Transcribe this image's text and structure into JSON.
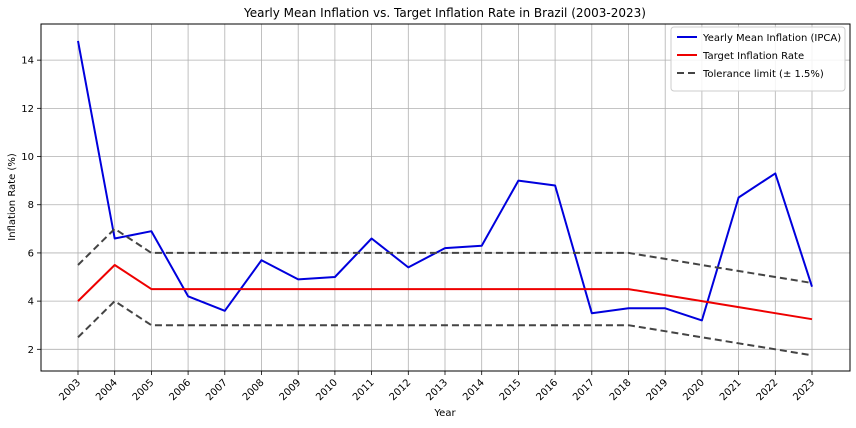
{
  "chart_data": {
    "type": "line",
    "title": "Yearly Mean Inflation vs. Target Inflation Rate in Brazil (2003-2023)",
    "xlabel": "Year",
    "ylabel": "Inflation Rate (%)",
    "x": [
      "2003",
      "2004",
      "2005",
      "2006",
      "2007",
      "2008",
      "2009",
      "2010",
      "2011",
      "2012",
      "2013",
      "2014",
      "2015",
      "2016",
      "2017",
      "2018",
      "2019",
      "2020",
      "2021",
      "2022",
      "2023"
    ],
    "ylim": [
      1.1,
      15.5
    ],
    "yticks": [
      2,
      4,
      6,
      8,
      10,
      12,
      14
    ],
    "grid": true,
    "legend_position": "top-right",
    "series": [
      {
        "name": "Yearly Mean Inflation (IPCA)",
        "color": "#0000dd",
        "style": "solid",
        "show_in_legend": true,
        "values": [
          14.8,
          6.6,
          6.9,
          4.2,
          3.6,
          5.7,
          4.9,
          5.0,
          6.6,
          5.4,
          6.2,
          6.3,
          9.0,
          8.8,
          3.5,
          3.7,
          3.7,
          3.2,
          8.3,
          9.3,
          4.6
        ]
      },
      {
        "name": "Target Inflation Rate",
        "color": "#ee0000",
        "style": "solid",
        "show_in_legend": true,
        "values": [
          4.0,
          5.5,
          4.5,
          4.5,
          4.5,
          4.5,
          4.5,
          4.5,
          4.5,
          4.5,
          4.5,
          4.5,
          4.5,
          4.5,
          4.5,
          4.5,
          4.25,
          4.0,
          3.75,
          3.5,
          3.25
        ]
      },
      {
        "name": "Tolerance limit (± 1.5%)",
        "color": "#444444",
        "style": "dashed",
        "show_in_legend": true,
        "values": [
          5.5,
          7.0,
          6.0,
          6.0,
          6.0,
          6.0,
          6.0,
          6.0,
          6.0,
          6.0,
          6.0,
          6.0,
          6.0,
          6.0,
          6.0,
          6.0,
          5.75,
          5.5,
          5.25,
          5.0,
          4.75
        ]
      },
      {
        "name": "",
        "color": "#444444",
        "style": "dashed",
        "show_in_legend": false,
        "values": [
          2.5,
          4.0,
          3.0,
          3.0,
          3.0,
          3.0,
          3.0,
          3.0,
          3.0,
          3.0,
          3.0,
          3.0,
          3.0,
          3.0,
          3.0,
          3.0,
          2.75,
          2.5,
          2.25,
          2.0,
          1.75
        ]
      }
    ]
  }
}
